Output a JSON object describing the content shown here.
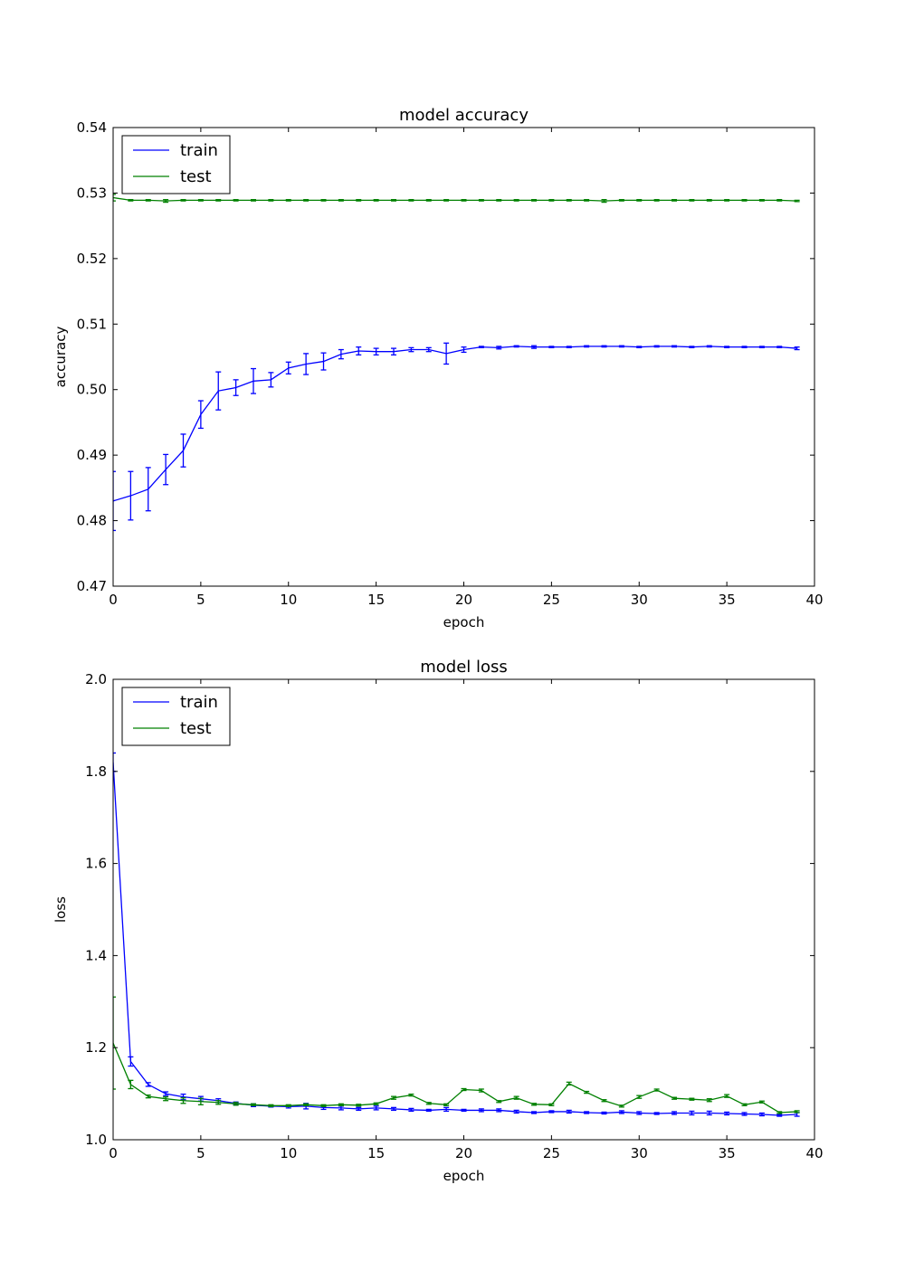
{
  "chart_data": [
    {
      "type": "line",
      "title": "model accuracy",
      "xlabel": "epoch",
      "ylabel": "accuracy",
      "xlim": [
        0,
        40
      ],
      "ylim": [
        0.47,
        0.54
      ],
      "xticks": [
        "0",
        "5",
        "10",
        "15",
        "20",
        "25",
        "30",
        "35",
        "40"
      ],
      "yticks": [
        "0.47",
        "0.48",
        "0.49",
        "0.50",
        "0.51",
        "0.52",
        "0.53",
        "0.54"
      ],
      "legend": {
        "position": "upper left",
        "entries": [
          "train",
          "test"
        ]
      },
      "x": [
        0,
        1,
        2,
        3,
        4,
        5,
        6,
        7,
        8,
        9,
        10,
        11,
        12,
        13,
        14,
        15,
        16,
        17,
        18,
        19,
        20,
        21,
        22,
        23,
        24,
        25,
        26,
        27,
        28,
        29,
        30,
        31,
        32,
        33,
        34,
        35,
        36,
        37,
        38,
        39
      ],
      "series": [
        {
          "name": "train",
          "color": "#0000ff",
          "values": [
            0.483,
            0.4838,
            0.4848,
            0.4878,
            0.4907,
            0.4962,
            0.4998,
            0.5003,
            0.5013,
            0.5015,
            0.5033,
            0.5039,
            0.5043,
            0.5054,
            0.5059,
            0.5058,
            0.5058,
            0.5061,
            0.5061,
            0.5055,
            0.5061,
            0.5065,
            0.5064,
            0.5066,
            0.5065,
            0.5065,
            0.5065,
            0.5066,
            0.5066,
            0.5066,
            0.5065,
            0.5066,
            0.5066,
            0.5065,
            0.5066,
            0.5065,
            0.5065,
            0.5065,
            0.5065,
            0.5063
          ],
          "errors": [
            0.0045,
            0.0037,
            0.0033,
            0.0023,
            0.0025,
            0.0021,
            0.0029,
            0.0012,
            0.0019,
            0.0011,
            0.0009,
            0.0016,
            0.0013,
            0.0007,
            0.0006,
            0.0005,
            0.0005,
            0.0003,
            0.0003,
            0.0016,
            0.0004,
            0.0001,
            0.0002,
            0.0001,
            0.0002,
            0.0001,
            0.0001,
            0.0001,
            0.0001,
            0.0001,
            0.0001,
            0.0001,
            0.0001,
            0.0001,
            0.0001,
            0.0001,
            0.0001,
            0.0001,
            0.0001,
            0.0002
          ]
        },
        {
          "name": "test",
          "color": "#008000",
          "values": [
            0.5293,
            0.5289,
            0.5289,
            0.5288,
            0.5289,
            0.5289,
            0.5289,
            0.5289,
            0.5289,
            0.5289,
            0.5289,
            0.5289,
            0.5289,
            0.5289,
            0.5289,
            0.5289,
            0.5289,
            0.5289,
            0.5289,
            0.5289,
            0.5289,
            0.5289,
            0.5289,
            0.5289,
            0.5289,
            0.5289,
            0.5289,
            0.5289,
            0.5288,
            0.5289,
            0.5289,
            0.5289,
            0.5289,
            0.5289,
            0.5289,
            0.5289,
            0.5289,
            0.5289,
            0.5289,
            0.5288
          ],
          "errors": [
            0.0005,
            0.0001,
            0.0001,
            0.0002,
            0.0001,
            0.0001,
            0.0001,
            0.0001,
            0.0001,
            0.0001,
            0.0001,
            0.0001,
            0.0001,
            0.0001,
            0.0001,
            0.0001,
            0.0001,
            0.0001,
            0.0001,
            0.0001,
            0.0001,
            0.0001,
            0.0001,
            0.0001,
            0.0001,
            0.0001,
            0.0001,
            0.0001,
            0.0002,
            0.0001,
            0.0001,
            0.0001,
            0.0001,
            0.0001,
            0.0001,
            0.0001,
            0.0001,
            0.0001,
            0.0001,
            0.0001
          ]
        }
      ]
    },
    {
      "type": "line",
      "title": "model loss",
      "xlabel": "epoch",
      "ylabel": "loss",
      "xlim": [
        0,
        40
      ],
      "ylim": [
        1.0,
        2.0
      ],
      "xticks": [
        "0",
        "5",
        "10",
        "15",
        "20",
        "25",
        "30",
        "35",
        "40"
      ],
      "yticks": [
        "1.0",
        "1.2",
        "1.4",
        "1.6",
        "1.8",
        "2.0"
      ],
      "legend": {
        "position": "upper left",
        "entries": [
          "train",
          "test"
        ]
      },
      "x": [
        0,
        1,
        2,
        3,
        4,
        5,
        6,
        7,
        8,
        9,
        10,
        11,
        12,
        13,
        14,
        15,
        16,
        17,
        18,
        19,
        20,
        21,
        22,
        23,
        24,
        25,
        26,
        27,
        28,
        29,
        30,
        31,
        32,
        33,
        34,
        35,
        36,
        37,
        38,
        39
      ],
      "series": [
        {
          "name": "train",
          "color": "#0000ff",
          "values": [
            1.82,
            1.17,
            1.12,
            1.1,
            1.093,
            1.089,
            1.085,
            1.079,
            1.075,
            1.073,
            1.072,
            1.073,
            1.07,
            1.069,
            1.067,
            1.069,
            1.067,
            1.065,
            1.064,
            1.066,
            1.064,
            1.064,
            1.064,
            1.061,
            1.059,
            1.061,
            1.061,
            1.059,
            1.058,
            1.06,
            1.058,
            1.057,
            1.058,
            1.058,
            1.058,
            1.057,
            1.056,
            1.055,
            1.053,
            1.055
          ],
          "errors": [
            0.02,
            0.01,
            0.004,
            0.004,
            0.006,
            0.005,
            0.004,
            0.003,
            0.003,
            0.002,
            0.003,
            0.006,
            0.004,
            0.004,
            0.003,
            0.004,
            0.003,
            0.003,
            0.002,
            0.004,
            0.002,
            0.003,
            0.003,
            0.003,
            0.002,
            0.002,
            0.003,
            0.002,
            0.002,
            0.003,
            0.003,
            0.002,
            0.003,
            0.004,
            0.004,
            0.003,
            0.003,
            0.003,
            0.002,
            0.004
          ]
        },
        {
          "name": "test",
          "color": "#008000",
          "values": [
            1.21,
            1.12,
            1.094,
            1.089,
            1.085,
            1.083,
            1.081,
            1.078,
            1.076,
            1.074,
            1.074,
            1.076,
            1.074,
            1.076,
            1.075,
            1.078,
            1.091,
            1.097,
            1.079,
            1.076,
            1.109,
            1.107,
            1.083,
            1.091,
            1.077,
            1.076,
            1.122,
            1.103,
            1.085,
            1.073,
            1.093,
            1.108,
            1.09,
            1.088,
            1.086,
            1.095,
            1.076,
            1.082,
            1.059,
            1.061
          ],
          "errors": [
            0.1,
            0.009,
            0.003,
            0.004,
            0.006,
            0.007,
            0.004,
            0.003,
            0.002,
            0.002,
            0.002,
            0.002,
            0.002,
            0.002,
            0.002,
            0.002,
            0.003,
            0.002,
            0.002,
            0.002,
            0.002,
            0.003,
            0.002,
            0.003,
            0.002,
            0.002,
            0.003,
            0.002,
            0.002,
            0.002,
            0.003,
            0.002,
            0.002,
            0.002,
            0.003,
            0.003,
            0.002,
            0.002,
            0.002,
            0.002
          ]
        }
      ]
    }
  ]
}
